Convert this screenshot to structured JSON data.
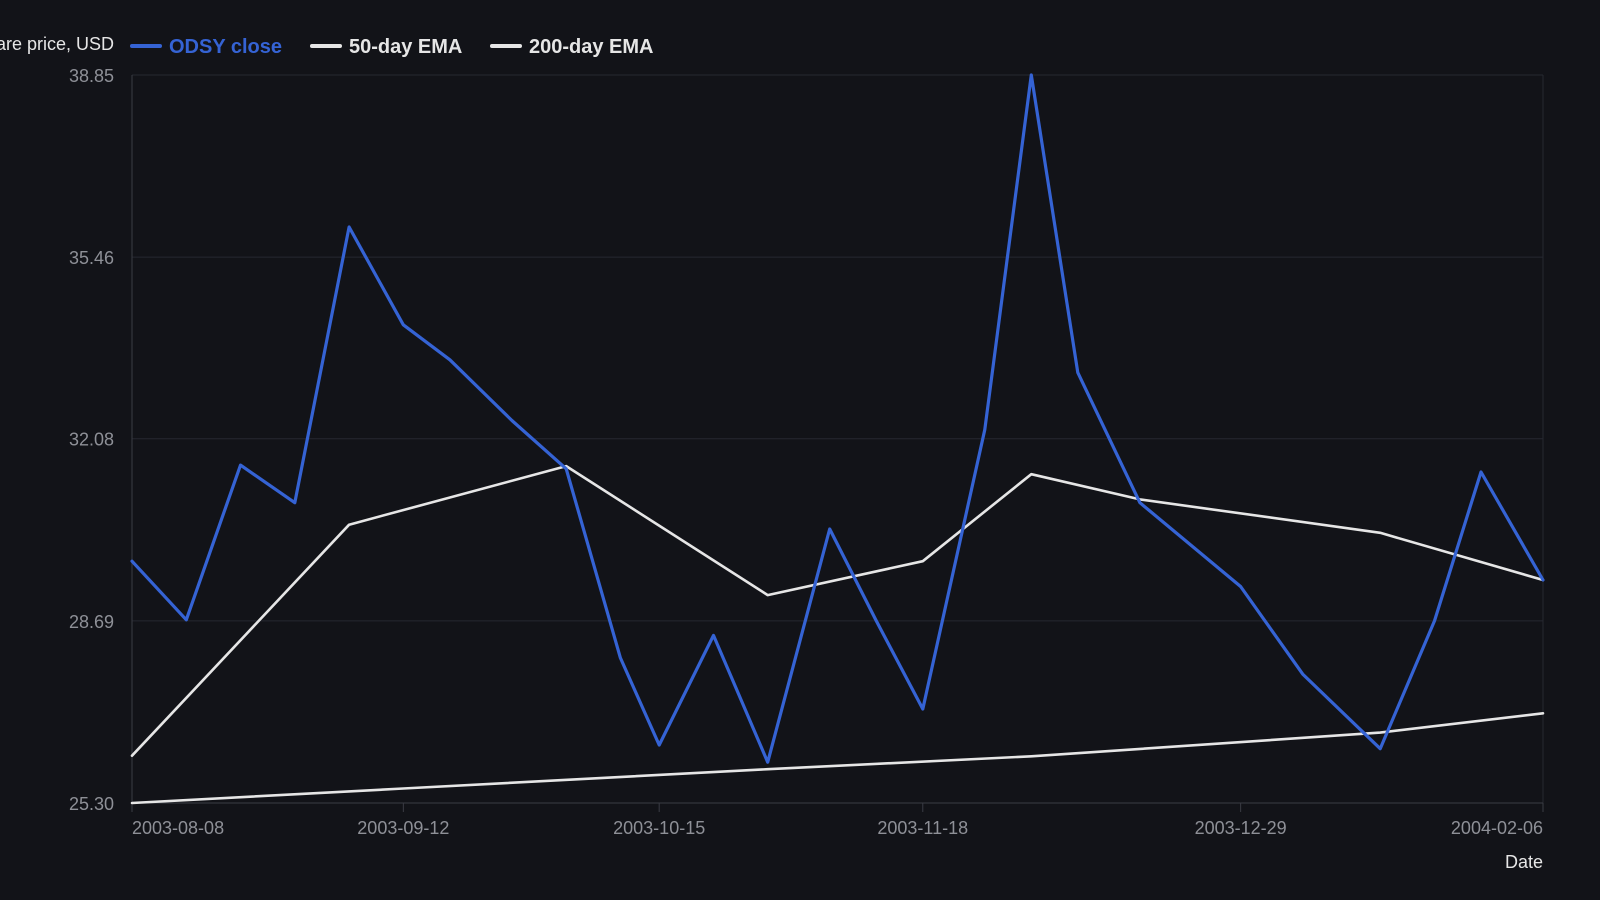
{
  "chart_data": {
    "type": "line",
    "ylabel": "Share price, USD",
    "xlabel": "Date",
    "ylim": [
      25.3,
      38.85
    ],
    "y_ticks": [
      "25.30",
      "28.69",
      "32.08",
      "35.46",
      "38.85"
    ],
    "x_range": [
      "2003-08-08",
      "2004-02-06"
    ],
    "x_ticks": [
      "2003-08-08",
      "2003-09-12",
      "2003-10-15",
      "2003-11-18",
      "2003-12-29",
      "2004-02-06"
    ],
    "grid": true,
    "legend_position": "top-left",
    "series": [
      {
        "name": "ODSY close",
        "color": "#3563d4",
        "points": [
          {
            "x": "2003-08-08",
            "y": 29.8
          },
          {
            "x": "2003-08-15",
            "y": 28.71
          },
          {
            "x": "2003-08-22",
            "y": 31.59
          },
          {
            "x": "2003-08-29",
            "y": 30.89
          },
          {
            "x": "2003-09-05",
            "y": 36.02
          },
          {
            "x": "2003-09-12",
            "y": 34.2
          },
          {
            "x": "2003-09-18",
            "y": 33.55
          },
          {
            "x": "2003-09-26",
            "y": 32.42
          },
          {
            "x": "2003-10-03",
            "y": 31.52
          },
          {
            "x": "2003-10-10",
            "y": 28.0
          },
          {
            "x": "2003-10-15",
            "y": 26.38
          },
          {
            "x": "2003-10-22",
            "y": 28.42
          },
          {
            "x": "2003-10-29",
            "y": 26.06
          },
          {
            "x": "2003-11-06",
            "y": 30.4
          },
          {
            "x": "2003-11-12",
            "y": 28.69
          },
          {
            "x": "2003-11-18",
            "y": 27.05
          },
          {
            "x": "2003-11-26",
            "y": 32.25
          },
          {
            "x": "2003-12-02",
            "y": 38.85
          },
          {
            "x": "2003-12-08",
            "y": 33.31
          },
          {
            "x": "2003-12-16",
            "y": 30.89
          },
          {
            "x": "2003-12-29",
            "y": 29.33
          },
          {
            "x": "2004-01-06",
            "y": 27.7
          },
          {
            "x": "2004-01-16",
            "y": 26.31
          },
          {
            "x": "2004-01-23",
            "y": 28.69
          },
          {
            "x": "2004-01-29",
            "y": 31.46
          },
          {
            "x": "2004-02-06",
            "y": 29.45
          }
        ]
      },
      {
        "name": "50-day EMA",
        "color": "#e6e6e6",
        "points": [
          {
            "x": "2003-08-08",
            "y": 26.18
          },
          {
            "x": "2003-09-05",
            "y": 30.48
          },
          {
            "x": "2003-10-03",
            "y": 31.57
          },
          {
            "x": "2003-10-29",
            "y": 29.17
          },
          {
            "x": "2003-11-18",
            "y": 29.8
          },
          {
            "x": "2003-12-02",
            "y": 31.42
          },
          {
            "x": "2003-12-16",
            "y": 30.95
          },
          {
            "x": "2004-01-16",
            "y": 30.33
          },
          {
            "x": "2004-02-06",
            "y": 29.45
          }
        ]
      },
      {
        "name": "200-day EMA",
        "color": "#e6e6e6",
        "points": [
          {
            "x": "2003-08-08",
            "y": 25.3
          },
          {
            "x": "2003-09-12",
            "y": 25.57
          },
          {
            "x": "2003-10-29",
            "y": 25.93
          },
          {
            "x": "2003-12-02",
            "y": 26.17
          },
          {
            "x": "2004-01-16",
            "y": 26.61
          },
          {
            "x": "2004-02-06",
            "y": 26.97
          }
        ]
      }
    ]
  }
}
